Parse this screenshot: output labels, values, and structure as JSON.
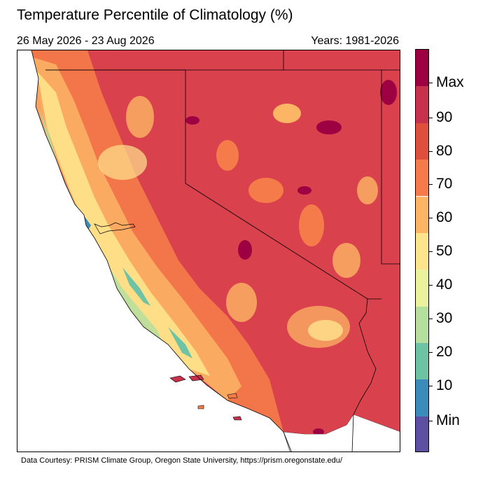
{
  "title": "Temperature Percentile of Climatology (%)",
  "date_range": "26 May 2026 - 23 Aug 2026",
  "years": "Years: 1981-2026",
  "footer": "Data Courtesy: PRISM Climate Group, Oregon State University, https://prism.oregonstate.edu/",
  "colorbar": {
    "labels": [
      "Max",
      "90",
      "80",
      "70",
      "60",
      "50",
      "40",
      "30",
      "20",
      "10",
      "Min"
    ],
    "colors": [
      "#9e0142",
      "#c8314b",
      "#e04f3e",
      "#f57c4a",
      "#fcb465",
      "#fee48d",
      "#eaf39c",
      "#b4df9f",
      "#6ec3a4",
      "#3a8cba",
      "#5d4fa2"
    ]
  },
  "map": {
    "region": "California and Nevada",
    "land_color": "#d9414d"
  }
}
